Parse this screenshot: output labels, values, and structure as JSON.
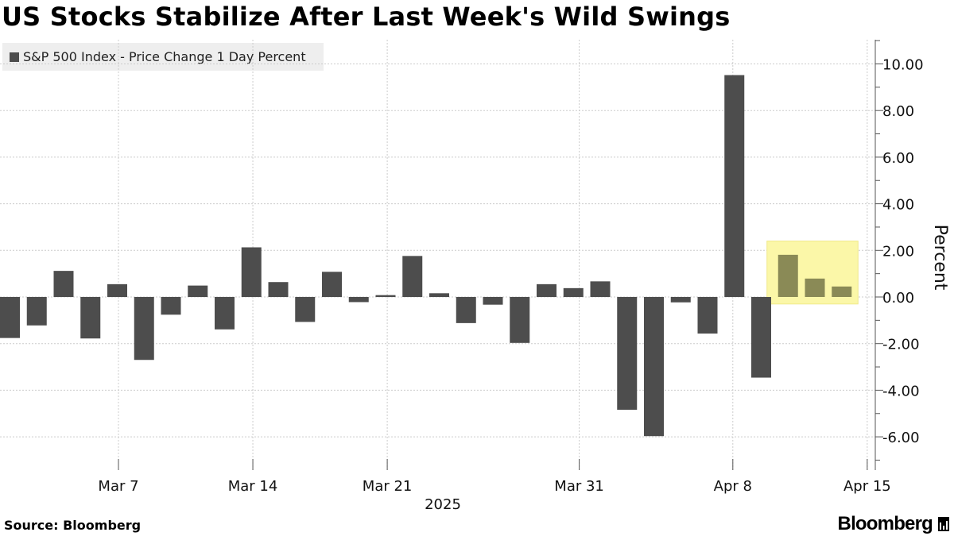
{
  "chart_data": {
    "type": "bar",
    "title": "US Stocks Stabilize After Last Week's Wild Swings",
    "legend": [
      "S&P 500 Index - Price Change 1 Day Percent"
    ],
    "ylabel": "Percent",
    "xlabel": "2025",
    "ylim": [
      -7.5,
      11
    ],
    "y_ticks": [
      "10.00",
      "8.00",
      "6.00",
      "4.00",
      "2.00",
      "0.00",
      "-2.00",
      "-4.00",
      "-6.00"
    ],
    "x_tick_labels": [
      "Mar 7",
      "Mar 14",
      "Mar 21",
      "Mar 31",
      "Apr 8",
      "Apr 15"
    ],
    "grid": true,
    "legend_position": "top-left",
    "dates": [
      "2025-03-03",
      "2025-03-04",
      "2025-03-05",
      "2025-03-06",
      "2025-03-07",
      "2025-03-10",
      "2025-03-11",
      "2025-03-12",
      "2025-03-13",
      "2025-03-14",
      "2025-03-17",
      "2025-03-18",
      "2025-03-19",
      "2025-03-20",
      "2025-03-21",
      "2025-03-24",
      "2025-03-25",
      "2025-03-26",
      "2025-03-27",
      "2025-03-28",
      "2025-03-31",
      "2025-04-01",
      "2025-04-02",
      "2025-04-03",
      "2025-04-04",
      "2025-04-07",
      "2025-04-08",
      "2025-04-09",
      "2025-04-10",
      "2025-04-11",
      "2025-04-14",
      "2025-04-15"
    ],
    "values": [
      -1.76,
      -1.22,
      1.12,
      -1.78,
      0.55,
      -2.7,
      -0.76,
      0.49,
      -1.39,
      2.13,
      0.64,
      -1.07,
      1.08,
      -0.22,
      0.08,
      1.76,
      0.16,
      -1.12,
      -0.33,
      -1.97,
      0.55,
      0.38,
      0.67,
      -4.84,
      -5.97,
      -0.23,
      -1.57,
      9.52,
      -3.46,
      1.81,
      0.79,
      0.45
    ],
    "highlight": {
      "from": "2025-04-11",
      "to": "2025-04-15",
      "color": "#f5f2a0"
    }
  },
  "colors": {
    "bar": "#4d4d4d",
    "bar_highlight": "#8a8a56",
    "highlight_box": "#fbf7a8",
    "grid": "#cccccc"
  },
  "source": "Source: Bloomberg",
  "brand": "Bloomberg"
}
